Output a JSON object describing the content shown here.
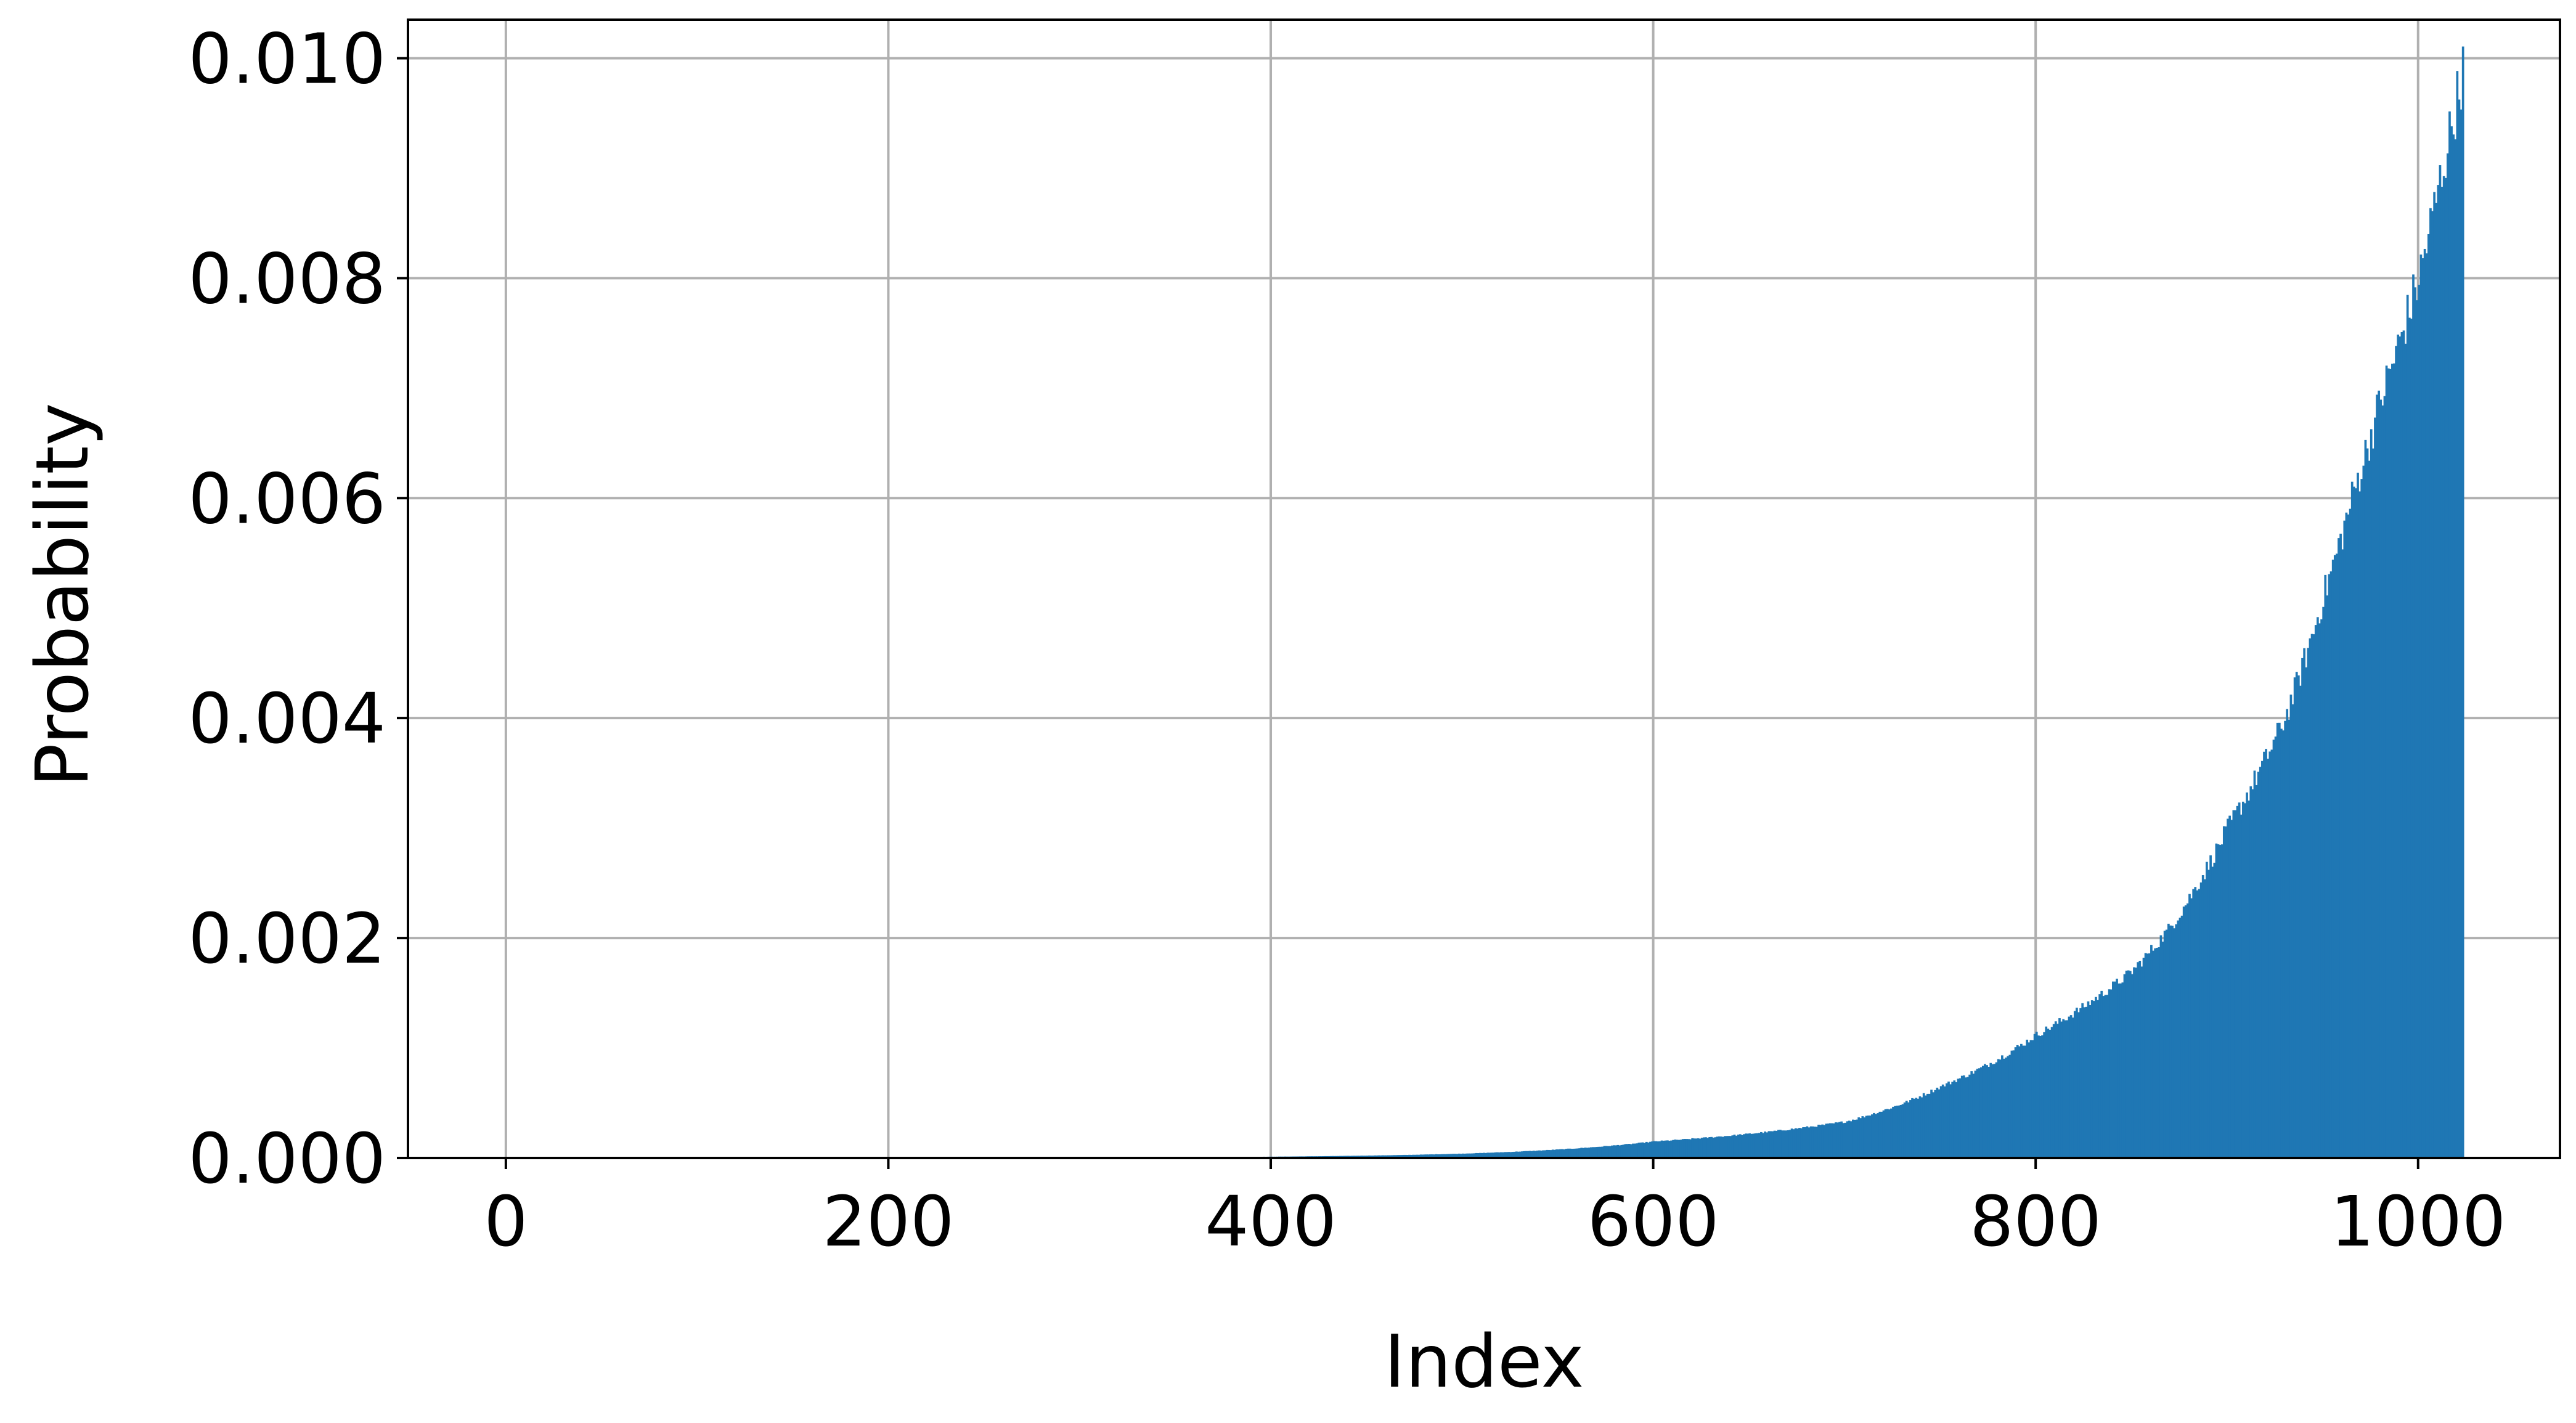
{
  "chart_data": {
    "type": "bar",
    "title": "",
    "xlabel": "Index",
    "ylabel": "Probability",
    "xlim": [
      -51.2,
      1074.2
    ],
    "ylim": [
      0,
      0.01035
    ],
    "xticks": [
      0,
      200,
      400,
      600,
      800,
      1000
    ],
    "xtick_labels": [
      "0",
      "200",
      "400",
      "600",
      "800",
      "1000"
    ],
    "yticks": [
      0,
      0.002,
      0.004,
      0.006,
      0.008,
      0.01
    ],
    "ytick_labels": [
      "0.000",
      "0.002",
      "0.004",
      "0.006",
      "0.008",
      "0.010"
    ],
    "grid": true,
    "bar_color": "#1f77b4",
    "n_bars": 1024,
    "series": [
      {
        "name": "probability",
        "x_start": 0,
        "x_step": 1,
        "values_note": "approx. exponential growth read from axes: ~0.00001 at index 400, ~0.00015 at 600, ~0.00033 at 700, ~0.00112 at 800, ~0.0021 at 870, ~0.0040 at 930, ~0.0060 at 965, ~0.0080 at 1000, ~0.0099 at 1023",
        "anchor_points": [
          [
            0,
            0.0
          ],
          [
            200,
            5e-07
          ],
          [
            300,
            3e-06
          ],
          [
            400,
            1.2e-05
          ],
          [
            500,
            4e-05
          ],
          [
            600,
            0.00015
          ],
          [
            650,
            0.00022
          ],
          [
            700,
            0.00033
          ],
          [
            750,
            0.00065
          ],
          [
            800,
            0.00112
          ],
          [
            850,
            0.0017
          ],
          [
            870,
            0.0021
          ],
          [
            900,
            0.003
          ],
          [
            930,
            0.004
          ],
          [
            950,
            0.0051
          ],
          [
            965,
            0.006
          ],
          [
            980,
            0.0069
          ],
          [
            1000,
            0.008
          ],
          [
            1010,
            0.0088
          ],
          [
            1023,
            0.0099
          ]
        ]
      }
    ]
  }
}
